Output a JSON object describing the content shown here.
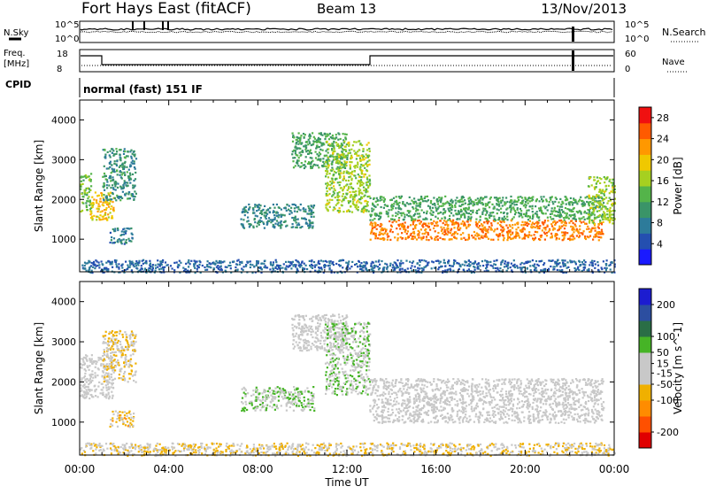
{
  "header": {
    "station": "Fort Hays East (fitACF)",
    "beam": "Beam 13",
    "date": "13/Nov/2013"
  },
  "strip_labels": {
    "nsky": "N.Sky",
    "freq_line1": "Freq.",
    "freq_line2": "[MHz]",
    "cpid": "CPID",
    "nsearch": "N.Search",
    "nave": "Nave",
    "cpid_text": "normal (fast) 151 IF"
  },
  "strip_ticks": {
    "noise_left": [
      "10^5",
      "10^0"
    ],
    "noise_right": [
      "10^5",
      "10^0"
    ],
    "freq_left": [
      "18",
      "8"
    ],
    "freq_right": [
      "60",
      "0"
    ]
  },
  "colors": {
    "power": [
      "#1a1aff",
      "#244fb0",
      "#2d7b9a",
      "#3a9468",
      "#54b44a",
      "#a6d020",
      "#f0c800",
      "#ff9800",
      "#ff5a00",
      "#f01010"
    ],
    "velocity": [
      "#e00000",
      "#ff5000",
      "#ff8c00",
      "#f0b000",
      "#c8c8c8",
      "#c8c8c8",
      "#46b426",
      "#2a6e46",
      "#2c4ea0",
      "#1c1cd0"
    ],
    "ground_scatter": "#c0c0b8"
  },
  "chart_data": [
    {
      "type": "heatmap",
      "name": "power",
      "xlabel": "",
      "ylabel": "Slant Range [km]",
      "x_tick_labels": [
        "00:00",
        "04:00",
        "08:00",
        "12:00",
        "16:00",
        "20:00",
        "00:00"
      ],
      "y_ticks": [
        1000,
        2000,
        3000,
        4000
      ],
      "ylim": [
        180,
        4500
      ],
      "colorbar": {
        "label": "Power [dB]",
        "ticks": [
          4,
          8,
          12,
          16,
          20,
          24,
          28
        ],
        "range": [
          0,
          30
        ]
      },
      "regions": [
        {
          "t": [
            0.0,
            0.5
          ],
          "r": [
            1700,
            2700
          ],
          "value": 14
        },
        {
          "t": [
            0.4,
            1.5
          ],
          "r": [
            1500,
            2200
          ],
          "value": 20
        },
        {
          "t": [
            1.0,
            2.5
          ],
          "r": [
            2000,
            3300
          ],
          "value": 10
        },
        {
          "t": [
            1.3,
            2.4
          ],
          "r": [
            900,
            1300
          ],
          "value": 8
        },
        {
          "t": [
            7.2,
            10.5
          ],
          "r": [
            1300,
            1900
          ],
          "value": 9
        },
        {
          "t": [
            9.5,
            12.0
          ],
          "r": [
            2800,
            3700
          ],
          "value": 12
        },
        {
          "t": [
            11.0,
            13.0
          ],
          "r": [
            1700,
            3500
          ],
          "value": 16
        },
        {
          "t": [
            13.0,
            23.5
          ],
          "r": [
            1000,
            1500
          ],
          "value": 24
        },
        {
          "t": [
            13.0,
            23.5
          ],
          "r": [
            1500,
            2100
          ],
          "value": 12
        },
        {
          "t": [
            22.8,
            24.0
          ],
          "r": [
            1400,
            2600
          ],
          "value": 16
        },
        {
          "t": [
            0.0,
            24.0
          ],
          "r": [
            180,
            500
          ],
          "value": 6
        }
      ]
    },
    {
      "type": "heatmap",
      "name": "velocity",
      "xlabel": "Time UT",
      "ylabel": "Slant Range [km]",
      "x_tick_labels": [
        "00:00",
        "04:00",
        "08:00",
        "12:00",
        "16:00",
        "20:00",
        "00:00"
      ],
      "y_ticks": [
        1000,
        2000,
        3000,
        4000
      ],
      "ylim": [
        180,
        4500
      ],
      "colorbar": {
        "label": "Velocity [m s^-1]",
        "ticks": [
          200,
          100,
          50,
          15,
          -15,
          -50,
          -100,
          -200
        ],
        "range": [
          -250,
          250
        ]
      },
      "regions": [
        {
          "t": [
            0.0,
            1.5
          ],
          "r": [
            1600,
            2700
          ],
          "value": 0
        },
        {
          "t": [
            1.0,
            2.5
          ],
          "r": [
            2000,
            3300
          ],
          "value": -40
        },
        {
          "t": [
            1.3,
            2.4
          ],
          "r": [
            900,
            1300
          ],
          "value": -60
        },
        {
          "t": [
            7.2,
            10.5
          ],
          "r": [
            1300,
            1900
          ],
          "value": 40
        },
        {
          "t": [
            9.5,
            12.0
          ],
          "r": [
            2800,
            3700
          ],
          "value": 0
        },
        {
          "t": [
            11.0,
            13.0
          ],
          "r": [
            1700,
            3500
          ],
          "value": 40
        },
        {
          "t": [
            13.0,
            23.5
          ],
          "r": [
            1000,
            2100
          ],
          "value": 0
        },
        {
          "t": [
            0.0,
            24.0
          ],
          "r": [
            180,
            500
          ],
          "value": -40
        }
      ]
    }
  ]
}
